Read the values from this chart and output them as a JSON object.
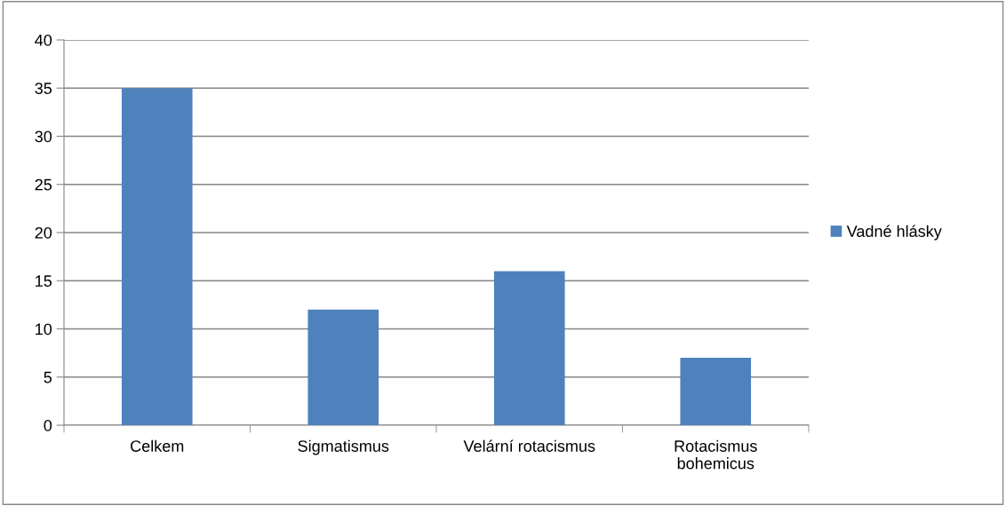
{
  "chart_data": {
    "type": "bar",
    "categories": [
      "Celkem",
      "Sigmatismus",
      "Velární rotacismus",
      "Rotacismus\nbohemicus"
    ],
    "series": [
      {
        "name": "Vadné hlásky",
        "color": "#4f81bd",
        "values": [
          35,
          12,
          16,
          7
        ]
      }
    ],
    "ylim": [
      0,
      40
    ],
    "yticks": [
      0,
      5,
      10,
      15,
      20,
      25,
      30,
      35,
      40
    ],
    "grid": "y",
    "legend": "right"
  }
}
